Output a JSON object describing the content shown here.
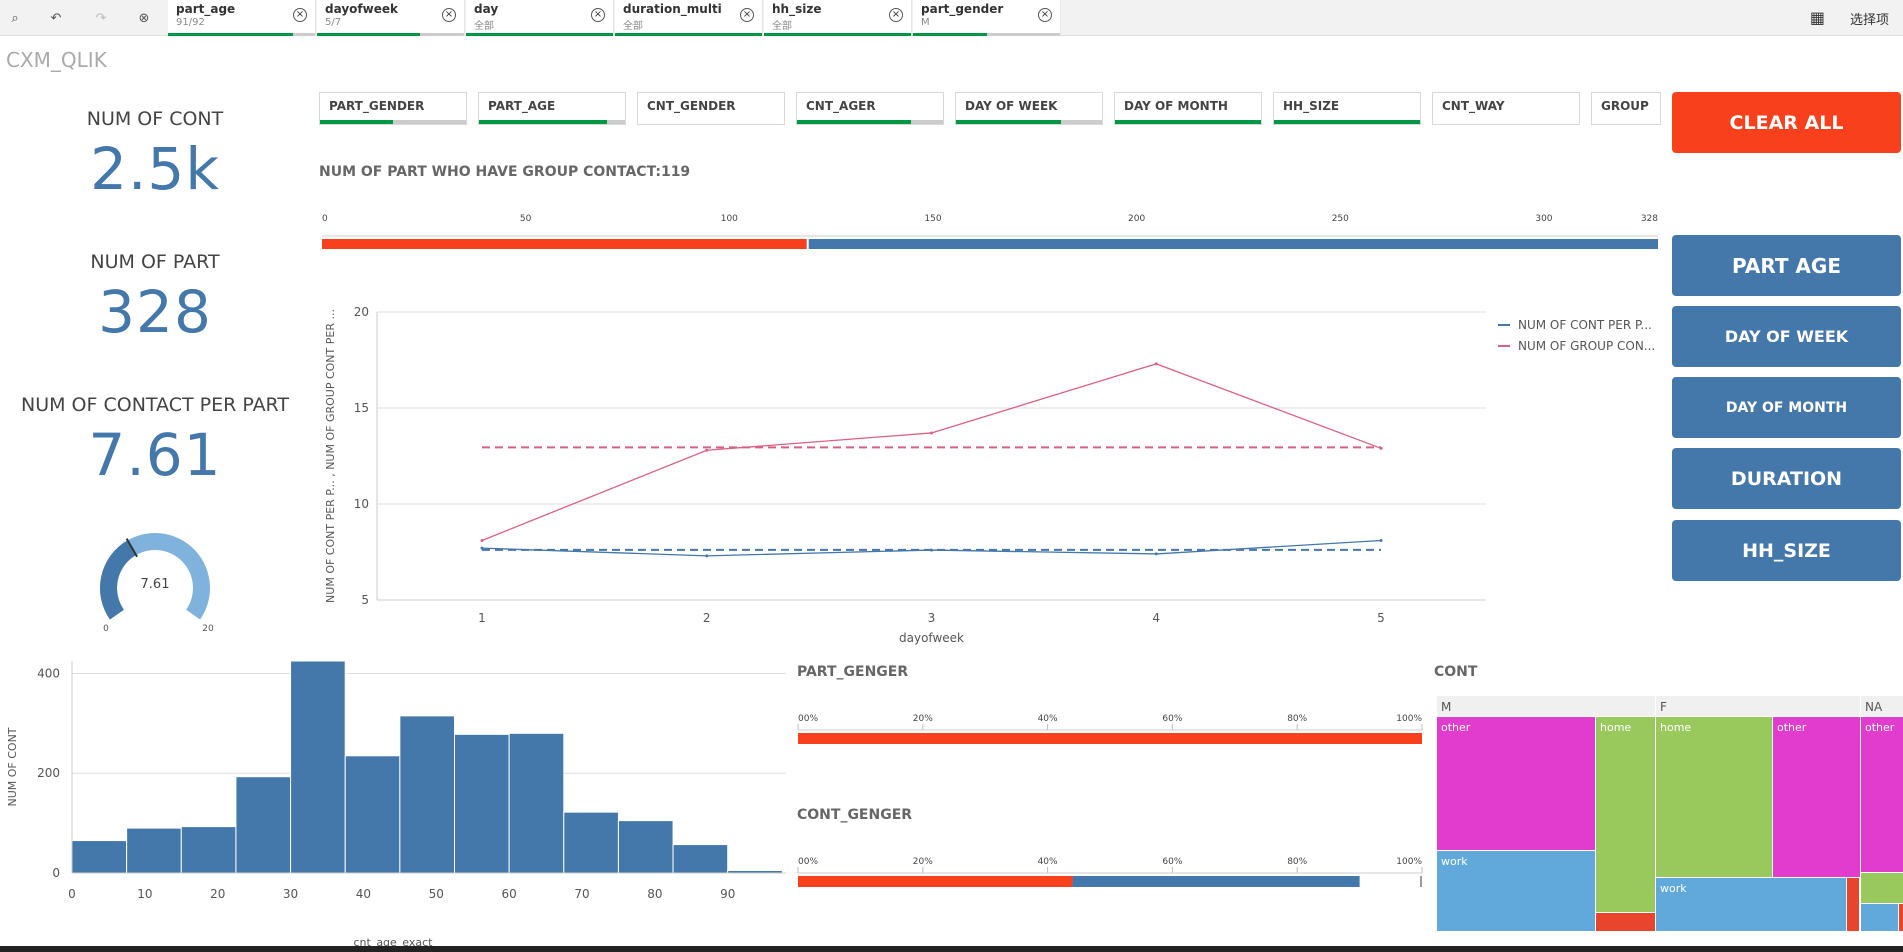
{
  "toolbar": {
    "tools": [
      {
        "name": "smart-search-icon",
        "glyph": "⌕"
      },
      {
        "name": "step-back-icon",
        "glyph": "↶"
      },
      {
        "name": "step-forward-icon",
        "glyph": "↷"
      },
      {
        "name": "clear-selections-icon",
        "glyph": "⊗"
      }
    ],
    "selections_label": "选择项"
  },
  "selections": [
    {
      "field": "part_age",
      "value": "91/92",
      "fill": 0.85
    },
    {
      "field": "dayofweek",
      "value": "5/7",
      "fill": 0.7
    },
    {
      "field": "day",
      "value": "全部",
      "fill": 1.0
    },
    {
      "field": "duration_multi",
      "value": "全部",
      "fill": 1.0
    },
    {
      "field": "hh_size",
      "value": "全部",
      "fill": 1.0
    },
    {
      "field": "part_gender",
      "value": "M",
      "fill": 0.5
    }
  ],
  "app_title": "CXM_QLIK",
  "kpis": [
    {
      "label": "NUM OF CONT",
      "value": "2.5k"
    },
    {
      "label": "NUM OF PART",
      "value": "328"
    },
    {
      "label": "NUM OF CONTACT PER PART",
      "value": "7.61"
    }
  ],
  "gauge": {
    "value": 7.61,
    "min": 0,
    "max": 20,
    "label": "7.61",
    "min_label": "0",
    "max_label": "20"
  },
  "filters": [
    {
      "label": "PART_GENDER",
      "fill": 0.5
    },
    {
      "label": "PART_AGE",
      "fill": 0.88
    },
    {
      "label": "CNT_GENDER",
      "fill": 0
    },
    {
      "label": "CNT_AGER",
      "fill": 0.78
    },
    {
      "label": "DAY OF WEEK",
      "fill": 0.72
    },
    {
      "label": "DAY OF MONTH",
      "fill": 1.0
    },
    {
      "label": "HH_SIZE",
      "fill": 1.0
    },
    {
      "label": "CNT_WAY",
      "fill": 0
    },
    {
      "label": "GROUP",
      "fill": 0
    }
  ],
  "clear_all": "CLEAR ALL",
  "nav_buttons": [
    "PART AGE",
    "DAY OF WEEK",
    "DAY OF MONTH",
    "DURATION",
    "HH_SIZE"
  ],
  "colors": {
    "accent": "#f8411c",
    "primary": "#4477aa",
    "selected": "#009845",
    "pink": "#d96082"
  },
  "chart_data": [
    {
      "type": "bar",
      "title": "NUM OF PART WHO HAVE GROUP CONTACT:119",
      "orientation": "horizontal",
      "ticks": [
        0,
        50,
        100,
        150,
        200,
        250,
        300,
        328
      ],
      "xlim": [
        0,
        328
      ],
      "values": [
        119,
        328
      ]
    },
    {
      "type": "line",
      "xlabel": "dayofweek",
      "ylabel": "NUM OF CONT PER P... , NUM OF GROUP CONT PER ...",
      "x": [
        1,
        2,
        3,
        4,
        5
      ],
      "ylim": [
        5,
        20
      ],
      "yticks": [
        5,
        10,
        15,
        20
      ],
      "legend": "top-right",
      "series": [
        {
          "name": "NUM OF CONT PER P...",
          "values": [
            7.7,
            7.3,
            7.6,
            7.4,
            8.1
          ],
          "reference": 7.61,
          "color": "#4477aa"
        },
        {
          "name": "NUM OF GROUP CON...",
          "values": [
            8.1,
            12.8,
            13.7,
            17.3,
            12.9
          ],
          "reference": 12.95,
          "color": "#d96082"
        }
      ]
    },
    {
      "type": "bar",
      "subtype": "histogram",
      "xlabel": "cnt_age_exact",
      "ylabel": "NUM OF CONT",
      "xlim": [
        0,
        98
      ],
      "xticks": [
        0,
        10,
        20,
        30,
        40,
        50,
        60,
        70,
        80,
        90
      ],
      "ylim": [
        0,
        425
      ],
      "yticks": [
        0,
        200,
        400
      ],
      "bin_width": 7.5,
      "values": [
        65,
        90,
        93,
        193,
        425,
        235,
        315,
        278,
        280,
        122,
        105,
        57,
        5
      ]
    },
    {
      "type": "bar",
      "title": "PART_GENGER",
      "orientation": "horizontal",
      "ticks": [
        "00%",
        "20%",
        "40%",
        "60%",
        "80%",
        "100%"
      ],
      "values": [
        1.0,
        0.0
      ]
    },
    {
      "type": "bar",
      "title": "CONT_GENGER",
      "orientation": "horizontal",
      "ticks": [
        "00%",
        "20%",
        "40%",
        "60%",
        "80%",
        "100%"
      ],
      "values": [
        0.44,
        0.46
      ]
    },
    {
      "type": "heatmap",
      "subtype": "treemap",
      "title": "CONT",
      "groups": [
        {
          "name": "M",
          "cells": [
            {
              "label": "other",
              "color": "#e23ccf"
            },
            {
              "label": "home",
              "color": "#99c95c"
            },
            {
              "label": "work",
              "color": "#62a9db"
            }
          ]
        },
        {
          "name": "F",
          "cells": [
            {
              "label": "home",
              "color": "#99c95c"
            },
            {
              "label": "other",
              "color": "#e23ccf"
            },
            {
              "label": "work",
              "color": "#62a9db"
            }
          ]
        },
        {
          "name": "NA",
          "cells": [
            {
              "label": "other",
              "color": "#e23ccf"
            }
          ]
        }
      ]
    }
  ]
}
